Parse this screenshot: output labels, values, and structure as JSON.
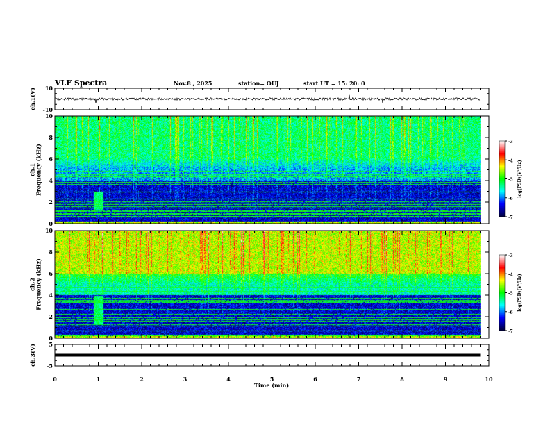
{
  "header": {
    "title": "VLF Spectra",
    "date": "Nov.8  , 2025",
    "station": "station= OUJ",
    "start": "start  UT  =    15: 20: 0"
  },
  "chart_data": {
    "type": "heatmap",
    "xlabel": "Time  (min)",
    "xlim": [
      0,
      10
    ],
    "xticks": [
      "0",
      "1",
      "2",
      "3",
      "4",
      "5",
      "6",
      "7",
      "8",
      "9",
      "10"
    ],
    "data_end_min": 9.8,
    "panels": [
      {
        "name": "ch1-waveform",
        "ylabel": "ch.1(V)",
        "ylim": [
          -10,
          10
        ],
        "yticks": [
          "10",
          "-10"
        ],
        "trace_level": 0
      },
      {
        "name": "ch1-spectrogram",
        "ylabel": "ch.1\nFrequency  (kHz)",
        "ylim": [
          0,
          10
        ],
        "yticks": [
          "0",
          "2",
          "4",
          "6",
          "8",
          "10"
        ],
        "colorbar": {
          "label": "log(PSD)(V²/Hz)",
          "range": [
            -7,
            -3
          ],
          "ticks": [
            "-3",
            "-4",
            "-5",
            "-6",
            "-7"
          ]
        }
      },
      {
        "name": "ch2-spectrogram",
        "ylabel": "ch.2\nFrequency  (kHz)",
        "ylim": [
          0,
          10
        ],
        "yticks": [
          "0",
          "2",
          "4",
          "6",
          "8",
          "10"
        ],
        "colorbar": {
          "label": "log(PSD)(V²/Hz)",
          "range": [
            -7,
            -3
          ],
          "ticks": [
            "-3",
            "-4",
            "-5",
            "-6",
            "-7"
          ]
        }
      },
      {
        "name": "ch3-waveform",
        "ylabel": "ch.3(V)",
        "ylim": [
          -5,
          5
        ],
        "yticks": [
          "5",
          "-5"
        ],
        "trace_level": 0
      }
    ]
  },
  "colors": {
    "colormap": [
      "#000040",
      "#0000ff",
      "#00ffff",
      "#00ff00",
      "#ffff00",
      "#ff0000",
      "#ffffff"
    ]
  }
}
